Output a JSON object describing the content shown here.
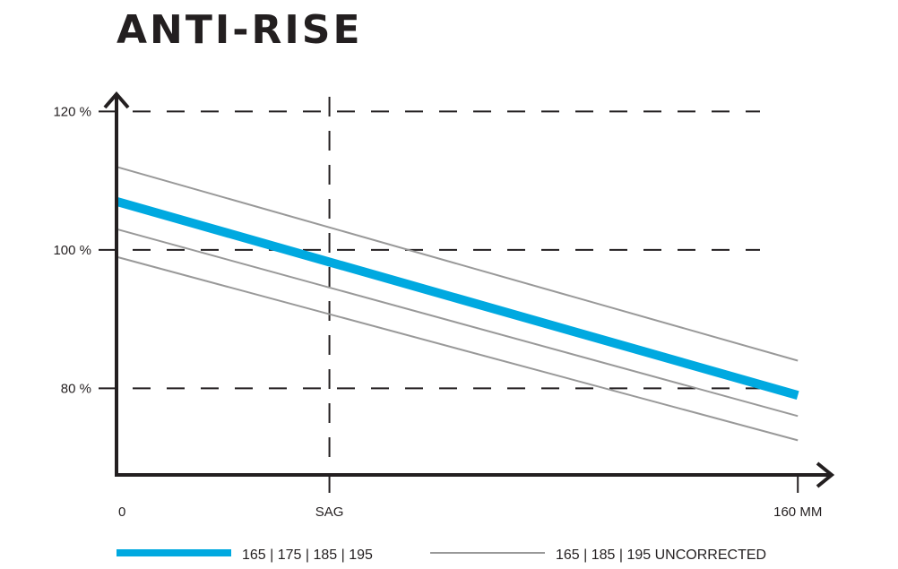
{
  "title": "ANTI-RISE",
  "chart_data": {
    "type": "line",
    "title": "ANTI-RISE",
    "xlabel": "",
    "ylabel": "",
    "x_ticks": [
      {
        "value": 0,
        "label": "0"
      },
      {
        "value": 50,
        "label": "SAG"
      },
      {
        "value": 160,
        "label": "160 MM"
      }
    ],
    "y_ticks": [
      {
        "value": 120,
        "label": "120 %"
      },
      {
        "value": 100,
        "label": "100 %"
      },
      {
        "value": 80,
        "label": "80 %"
      }
    ],
    "xlim": [
      0,
      173
    ],
    "ylim": [
      67.5,
      126
    ],
    "grid": "dashed",
    "sag_line_x": 50,
    "series": [
      {
        "name": "165 | 175 | 185 | 195",
        "color": "#00a9e0",
        "width": "thick",
        "x": [
          0,
          160
        ],
        "y": [
          107,
          79
        ]
      },
      {
        "name": "165 | 185 | 195 UNCORRECTED",
        "color": "#999999",
        "width": "thin",
        "x": [
          0,
          160
        ],
        "y": [
          112,
          84
        ]
      },
      {
        "name": "",
        "color": "#999999",
        "width": "thin",
        "x": [
          0,
          160
        ],
        "y": [
          103,
          76
        ]
      },
      {
        "name": "",
        "color": "#999999",
        "width": "thin",
        "x": [
          0,
          160
        ],
        "y": [
          99,
          72.5
        ]
      }
    ],
    "legend": {
      "placement": "bottom",
      "items": [
        {
          "label": "165 | 175 | 185 | 195",
          "color": "#00a9e0",
          "style": "thick"
        },
        {
          "label": "165 | 185 | 195 UNCORRECTED",
          "color": "#999999",
          "style": "thin"
        }
      ]
    }
  }
}
